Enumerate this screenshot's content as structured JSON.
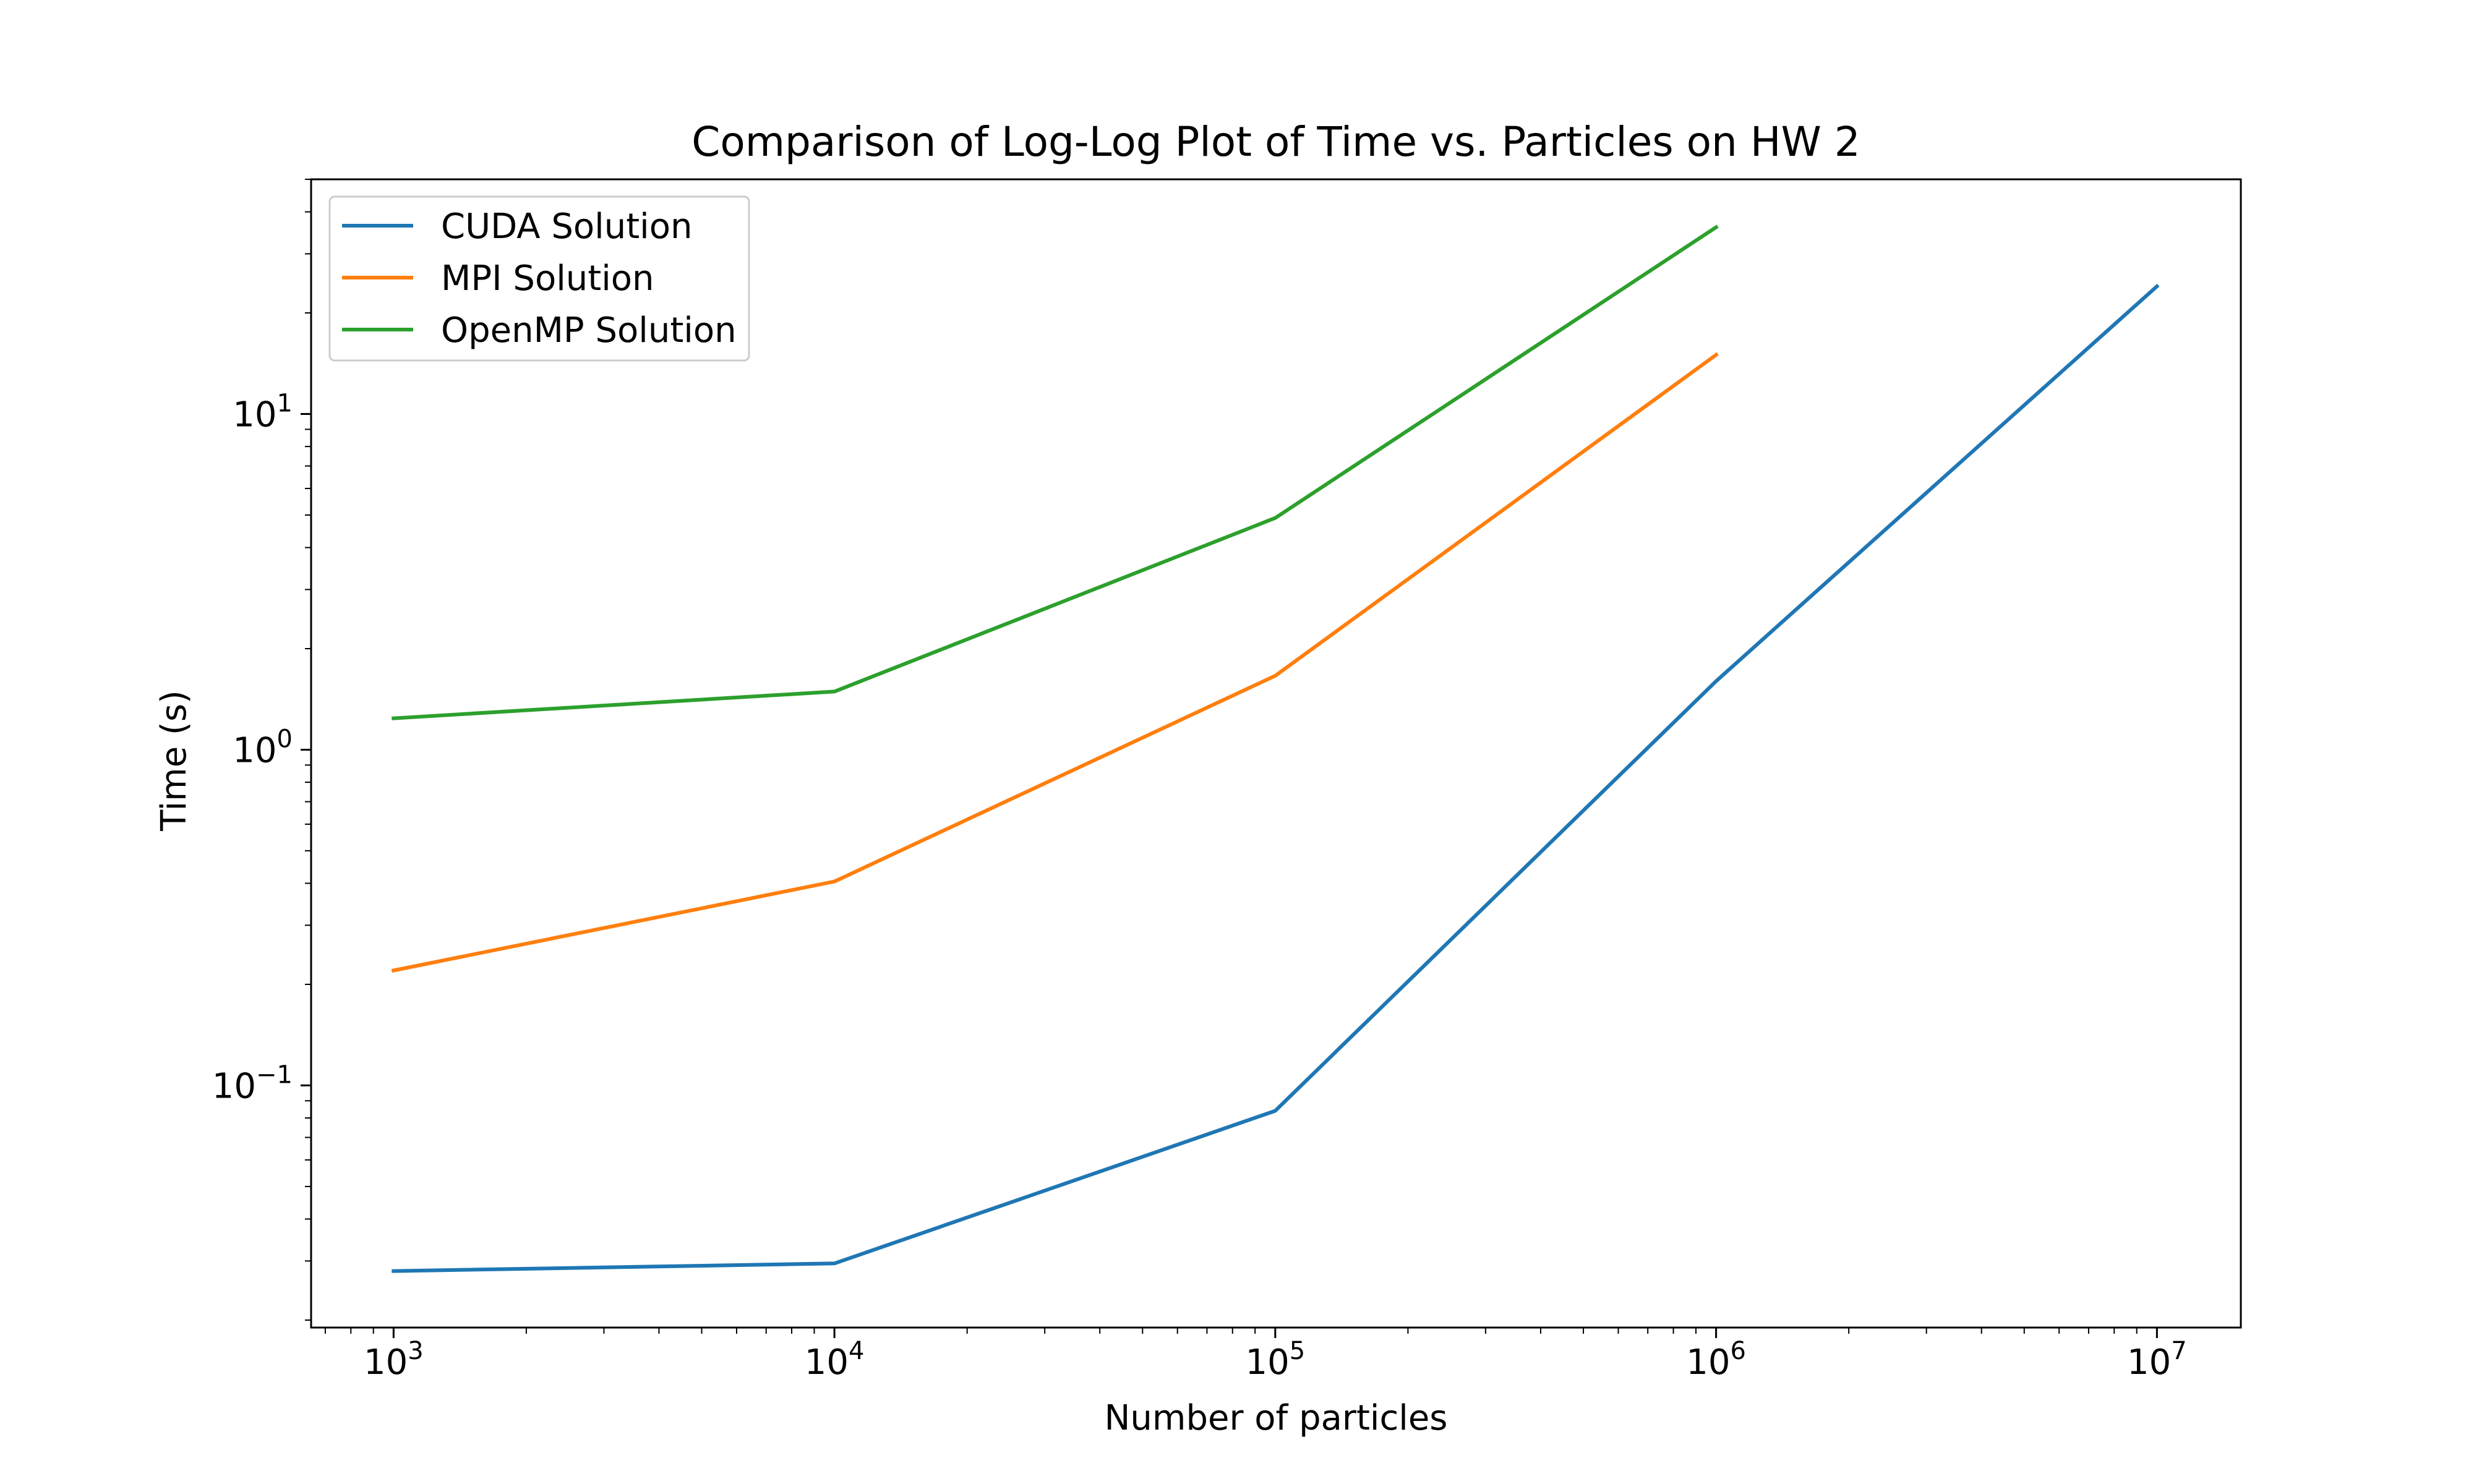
{
  "chart_data": {
    "type": "line",
    "title": "Comparison of Log-Log Plot of Time vs. Particles on HW 2",
    "xlabel": "Number of particles",
    "ylabel": "Time (s)",
    "xscale": "log",
    "yscale": "log",
    "xlim": [
      650,
      15500000
    ],
    "ylim": [
      0.019,
      50
    ],
    "grid": false,
    "legend_position": "top-left",
    "x_ticks": [
      {
        "base": "10",
        "exp": "3",
        "value": 1000
      },
      {
        "base": "10",
        "exp": "4",
        "value": 10000
      },
      {
        "base": "10",
        "exp": "5",
        "value": 100000
      },
      {
        "base": "10",
        "exp": "6",
        "value": 1000000
      },
      {
        "base": "10",
        "exp": "7",
        "value": 10000000
      }
    ],
    "y_ticks": [
      {
        "base": "10",
        "exp": "−1",
        "value": 0.1
      },
      {
        "base": "10",
        "exp": "0",
        "value": 1
      },
      {
        "base": "10",
        "exp": "1",
        "value": 10
      }
    ],
    "series": [
      {
        "name": "CUDA Solution",
        "color": "#1f77b4",
        "x": [
          1000,
          10000,
          100000,
          1000000,
          10000000
        ],
        "y": [
          0.028,
          0.0295,
          0.084,
          1.6,
          24
        ]
      },
      {
        "name": "MPI Solution",
        "color": "#ff7f0e",
        "x": [
          1000,
          10000,
          100000,
          1000000
        ],
        "y": [
          0.22,
          0.405,
          1.66,
          15
        ]
      },
      {
        "name": "OpenMP Solution",
        "color": "#2ca02c",
        "x": [
          1000,
          10000,
          100000,
          1000000
        ],
        "y": [
          1.24,
          1.49,
          4.9,
          36
        ]
      }
    ]
  }
}
